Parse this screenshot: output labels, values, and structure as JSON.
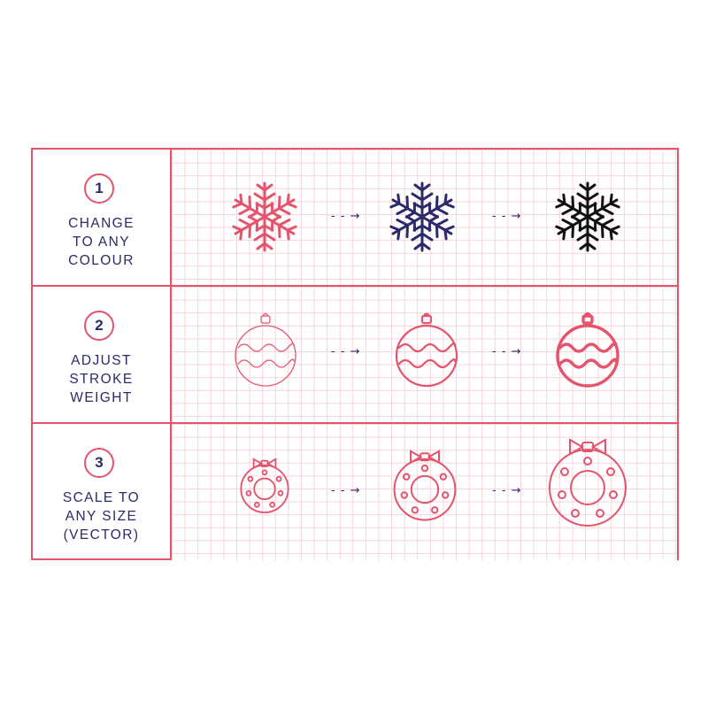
{
  "colors": {
    "accent": "#e4546d",
    "navy": "#2b2a6b",
    "black": "#111111",
    "grid": "#f6d3da"
  },
  "rows": [
    {
      "number": "1",
      "label": "CHANGE\nTO ANY\nCOLOUR",
      "icon": "snowflake-icon",
      "variant": "colour"
    },
    {
      "number": "2",
      "label": "ADJUST\nSTROKE\nWEIGHT",
      "icon": "bauble-icon",
      "variant": "stroke-weight"
    },
    {
      "number": "3",
      "label": "SCALE TO\nANY SIZE\n(VECTOR)",
      "icon": "wreath-icon",
      "variant": "size"
    }
  ],
  "arrow_glyph": "- - →"
}
